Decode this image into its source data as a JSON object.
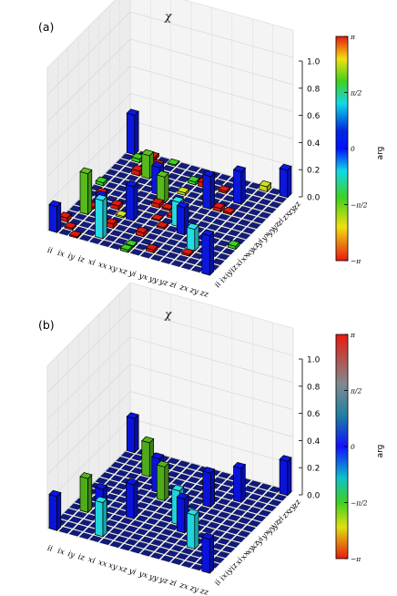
{
  "chart_data": [
    {
      "type": "bar3d",
      "panel_label": "(a)",
      "title": "χ",
      "x_categories": [
        "ii",
        "ix",
        "iy",
        "iz",
        "xi",
        "xx",
        "xy",
        "xz",
        "yi",
        "yx",
        "yy",
        "yz",
        "zi",
        "zx",
        "zy",
        "zz"
      ],
      "y_categories": [
        "ii",
        "ix",
        "iy",
        "iz",
        "xi",
        "xx",
        "xy",
        "xz",
        "yi",
        "yx",
        "yy",
        "yz",
        "zi",
        "zx",
        "zy",
        "zz"
      ],
      "z_ticks": [
        "0.0",
        "0.2",
        "0.4",
        "0.6",
        "0.8",
        "1.0"
      ],
      "zlim": [
        0,
        1
      ],
      "colorbar": {
        "label": "arg",
        "ticks": [
          "π",
          "π/2",
          "0",
          "−π/2",
          "−π"
        ],
        "colormap": "jet-like (red → yellow → green → cyan → blue → green → yellow → red)"
      },
      "bars": [
        {
          "x": "ii",
          "y": "ii",
          "value": 0.19,
          "phase": "0"
        },
        {
          "x": "ii",
          "y": "zz",
          "value": 0.29,
          "phase": "0"
        },
        {
          "x": "zz",
          "y": "ii",
          "value": 0.29,
          "phase": "0"
        },
        {
          "x": "zz",
          "y": "zz",
          "value": 0.2,
          "phase": "0"
        },
        {
          "x": "ix",
          "y": "xi",
          "value": 0.3,
          "phase": "-π/2"
        },
        {
          "x": "xi",
          "y": "ix",
          "value": 0.28,
          "phase": "π/2"
        },
        {
          "x": "xx",
          "y": "xx",
          "value": 0.25,
          "phase": "0"
        },
        {
          "x": "xx",
          "y": "yy",
          "value": 0.2,
          "phase": "0"
        },
        {
          "x": "yy",
          "y": "xx",
          "value": 0.2,
          "phase": "0"
        },
        {
          "x": "yy",
          "y": "yy",
          "value": 0.24,
          "phase": "0"
        },
        {
          "x": "iz",
          "y": "iz",
          "value": 0.21,
          "phase": "0"
        },
        {
          "x": "zi",
          "y": "zi",
          "value": 0.24,
          "phase": "0"
        },
        {
          "x": "iz",
          "y": "zi",
          "value": 0.17,
          "phase": "-π/2"
        },
        {
          "x": "zi",
          "y": "iz",
          "value": 0.16,
          "phase": "π/2"
        },
        {
          "x": "xy",
          "y": "yx",
          "value": 0.19,
          "phase": "-π/2"
        },
        {
          "x": "yx",
          "y": "xy",
          "value": 0.18,
          "phase": "π/2"
        }
      ],
      "small_elements": "many small bars (≈0.01–0.05) scattered across the grid, colored red, green and cyan"
    },
    {
      "type": "bar3d",
      "panel_label": "(b)",
      "title": "χ",
      "x_categories": [
        "ii",
        "ix",
        "iy",
        "iz",
        "xi",
        "xx",
        "xy",
        "xz",
        "yi",
        "yx",
        "yy",
        "yz",
        "zi",
        "zx",
        "zy",
        "zz"
      ],
      "y_categories": [
        "ii",
        "ix",
        "iy",
        "iz",
        "xi",
        "xx",
        "xy",
        "xz",
        "yi",
        "yx",
        "yy",
        "yz",
        "zi",
        "zx",
        "zy",
        "zz"
      ],
      "z_ticks": [
        "0.0",
        "0.2",
        "0.4",
        "0.6",
        "0.8",
        "1.0"
      ],
      "zlim": [
        0,
        1
      ],
      "colorbar": {
        "label": "arg",
        "ticks": [
          "π",
          "π/2",
          "0",
          "−π/2",
          "−π"
        ],
        "colormap": "red → gray → blue → green → red"
      },
      "bars": [
        {
          "x": "ii",
          "y": "ii",
          "value": 0.25,
          "phase": "0"
        },
        {
          "x": "ii",
          "y": "zz",
          "value": 0.25,
          "phase": "0"
        },
        {
          "x": "zz",
          "y": "ii",
          "value": 0.25,
          "phase": "0"
        },
        {
          "x": "zz",
          "y": "zz",
          "value": 0.25,
          "phase": "0"
        },
        {
          "x": "ix",
          "y": "xi",
          "value": 0.25,
          "phase": "-π/2"
        },
        {
          "x": "xi",
          "y": "ix",
          "value": 0.25,
          "phase": "π/2"
        },
        {
          "x": "xx",
          "y": "xx",
          "value": 0.25,
          "phase": "0"
        },
        {
          "x": "xx",
          "y": "yy",
          "value": 0.25,
          "phase": "0"
        },
        {
          "x": "yy",
          "y": "xx",
          "value": 0.25,
          "phase": "0"
        },
        {
          "x": "yy",
          "y": "yy",
          "value": 0.25,
          "phase": "0"
        },
        {
          "x": "iz",
          "y": "iz",
          "value": 0.25,
          "phase": "0"
        },
        {
          "x": "zi",
          "y": "zi",
          "value": 0.25,
          "phase": "0"
        },
        {
          "x": "iz",
          "y": "zi",
          "value": 0.25,
          "phase": "-π/2"
        },
        {
          "x": "zi",
          "y": "iz",
          "value": 0.25,
          "phase": "π/2"
        },
        {
          "x": "xy",
          "y": "yx",
          "value": 0.25,
          "phase": "-π/2"
        },
        {
          "x": "yx",
          "y": "xy",
          "value": 0.25,
          "phase": "π/2"
        }
      ]
    }
  ]
}
